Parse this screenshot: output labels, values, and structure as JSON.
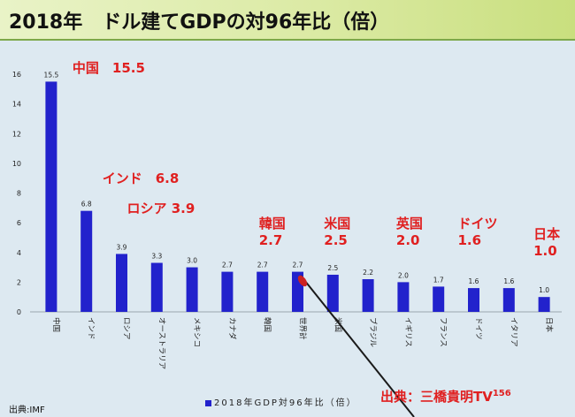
{
  "title": "2018年　ドル建てGDPの対96年比（倍）",
  "source_label": "出典:IMF",
  "legend_label": "2018年GDP対96年比（倍）",
  "credit": {
    "text": "出典：三橋貴明TV",
    "number": "156"
  },
  "colors": {
    "bar": "#2222cc",
    "annotation": "#e02020",
    "pointer": "#cc2222"
  },
  "annotations": [
    {
      "lines": [
        "中国　15.5"
      ],
      "bar": 0
    },
    {
      "lines": [
        "インド　6.8"
      ],
      "bar": 1
    },
    {
      "lines": [
        "ロシア 3.9"
      ],
      "bar": 2
    },
    {
      "lines": [
        "韓国",
        "2.7"
      ],
      "bar": 6
    },
    {
      "lines": [
        "米国",
        "2.5"
      ],
      "bar": 8
    },
    {
      "lines": [
        "英国",
        "2.0"
      ],
      "bar": 10
    },
    {
      "lines": [
        "ドイツ",
        "1.6"
      ],
      "bar": 12
    },
    {
      "lines": [
        "日本",
        "1.0"
      ],
      "bar": 14
    }
  ],
  "chart_data": {
    "type": "bar",
    "categories": [
      "中国",
      "インド",
      "ロシア",
      "オーストラリア",
      "メキシコ",
      "カナダ",
      "韓国",
      "世界計",
      "米国",
      "ブラジル",
      "イギリス",
      "フランス",
      "ドイツ",
      "イタリア",
      "日本"
    ],
    "values": [
      15.5,
      6.8,
      3.9,
      3.3,
      3.0,
      2.7,
      2.7,
      2.7,
      2.5,
      2.2,
      2.0,
      1.7,
      1.6,
      1.6,
      1.0
    ],
    "value_labels": [
      "15.5",
      "6.8",
      "3.9",
      "3.3",
      "3.0",
      "2.7",
      "2.7",
      "2.7",
      "2.5",
      "2.2",
      "2.0",
      "1.7",
      "1.6",
      "1.6",
      "1.0"
    ],
    "yticks": [
      0,
      2,
      4,
      6,
      8,
      10,
      12,
      14,
      16
    ],
    "ylim": [
      0,
      16
    ],
    "series": [
      {
        "name": "2018年GDP対96年比（倍）",
        "values": [
          15.5,
          6.8,
          3.9,
          3.3,
          3.0,
          2.7,
          2.7,
          2.7,
          2.5,
          2.2,
          2.0,
          1.7,
          1.6,
          1.6,
          1.0
        ]
      }
    ],
    "grid": false,
    "legend": "bottom"
  }
}
